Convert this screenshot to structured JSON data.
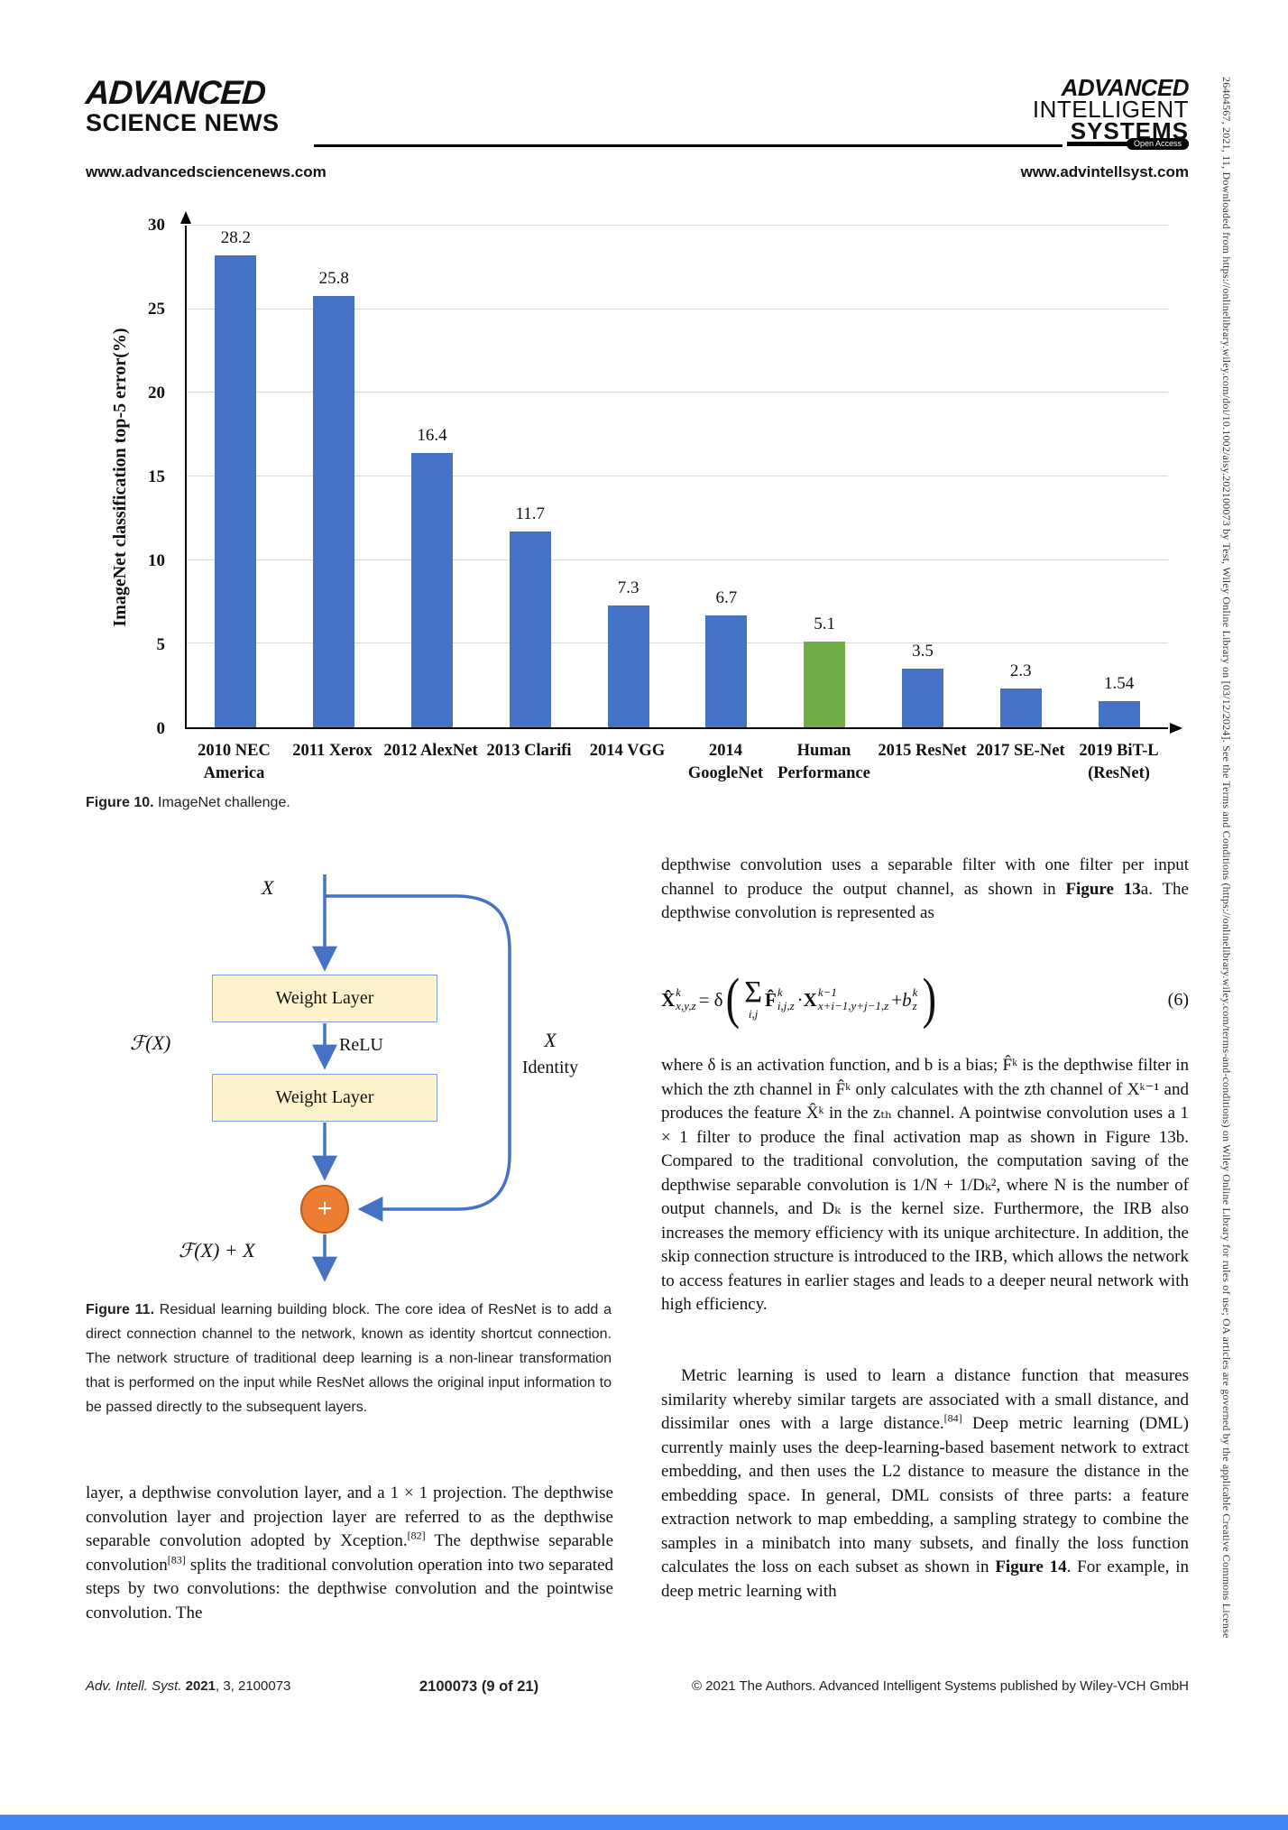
{
  "header": {
    "left_logo_line1": "ADVANCED",
    "left_logo_line2": "SCIENCE NEWS",
    "left_url": "www.advancedsciencenews.com",
    "right_logo_line1": "ADVANCED",
    "right_logo_line2": "INTELLIGENT",
    "right_logo_line3": "SYSTEMS",
    "open_access_label": "Open Access",
    "right_url": "www.advintellsyst.com"
  },
  "chart_data": {
    "type": "bar",
    "title": "",
    "xlabel": "",
    "ylabel": "ImageNet classification top-5 error(%)",
    "ylim": [
      0,
      30
    ],
    "yticks": [
      0,
      5,
      10,
      15,
      20,
      25,
      30
    ],
    "grid": true,
    "legend": "none",
    "categories": [
      "2010 NEC\nAmerica",
      "2011 Xerox",
      "2012 AlexNet",
      "2013 Clarifi",
      "2014 VGG",
      "2014\nGoogleNet",
      "Human\nPerformance",
      "2015 ResNet",
      "2017 SE-Net",
      "2019 BiT-L\n(ResNet)"
    ],
    "values": [
      28.2,
      25.8,
      16.4,
      11.7,
      7.3,
      6.7,
      5.1,
      3.5,
      2.3,
      1.54
    ],
    "value_labels": [
      "28.2",
      "25.8",
      "16.4",
      "11.7",
      "7.3",
      "6.7",
      "5.1",
      "3.5",
      "2.3",
      "1.54"
    ],
    "bar_color": "#4472c4",
    "highlight_index": 6,
    "highlight_color": "#70ad47"
  },
  "fig10_caption": {
    "label": "Figure 10.",
    "text": " ImageNet challenge."
  },
  "figure11": {
    "input_label": "X",
    "weight_layer1": "Weight Layer",
    "weight_layer2": "Weight Layer",
    "relu_label": "ReLU",
    "fx_label": "ℱ(X)",
    "identity_line1": "X",
    "identity_line2": "Identity",
    "plus_label": "+",
    "output_label": "ℱ(X) + X",
    "arrow_color": "#4472c4",
    "box_fill": "#fef2cc",
    "circle_fill": "#ed7d31"
  },
  "fig11_caption": {
    "label": "Figure 11.",
    "text": " Residual learning building block. The core idea of ResNet is to add a direct connection channel to the network, known as identity shortcut connection. The network structure of traditional deep learning is a non-linear transformation that is performed on the input while ResNet allows the original input information to be passed directly to the subsequent layers."
  },
  "left_column": {
    "seg1": "layer, a depthwise convolution layer, and a 1 × 1 projection. The depthwise convolution layer and projection layer are referred to as the depthwise separable convolution adopted by Xception.",
    "ref1": "[82]",
    "seg2": " The depthwise separable convolution",
    "ref2": "[83]",
    "seg3": " splits the traditional convolution operation into two separated steps by two convolutions: the depthwise convolution and the pointwise convolution. The"
  },
  "right_column": {
    "p1_seg1": "depthwise convolution uses a separable filter with one filter per input channel to produce the output channel, as shown in ",
    "p1_bold": "Figure 13",
    "p1_seg2": "a. The depthwise convolution is represented as",
    "equation": {
      "lhs_base": "X̂",
      "lhs_sup": "k",
      "lhs_sub": "x,y,z",
      "equals": "= δ",
      "paren_open": "(",
      "sum_sym": "Σ",
      "sum_sub": "i,j",
      "f_base": "F̂",
      "f_sup": "k",
      "f_sub": "i,j,z",
      "dot": "·",
      "x_base": "X",
      "x_sup": "k−1",
      "x_sub": "x+i−1,y+j−1,z",
      "plus": "+",
      "b_base": "b",
      "b_sup": "k",
      "b_sub": "z",
      "paren_close": ")",
      "number": "(6)"
    },
    "p2": "where δ is an activation function, and b is a bias; F̂ᵏ is the depthwise filter in which the zth channel in F̂ᵏ only calculates with the zth channel of Xᵏ⁻¹ and produces the feature X̂ᵏ in the zₜₕ channel. A pointwise convolution uses a 1 × 1 filter to produce the final activation map as shown in Figure 13b. Compared to the traditional convolution, the computation saving of the depthwise separable convolution is 1/N + 1/Dₖ², where N is the number of output channels, and Dₖ is the kernel size. Furthermore, the IRB also increases the memory efficiency with its unique architecture. In addition, the skip connection structure is introduced to the IRB, which allows the network to access features in earlier stages and leads to a deeper neural network with high efficiency.",
    "p3_seg1": "Metric learning is used to learn a distance function that measures similarity whereby similar targets are associated with a small distance, and dissimilar ones with a large distance.",
    "p3_ref1": "[84]",
    "p3_seg2": " Deep metric learning (DML) currently mainly uses the deep-learning-based basement network to extract embedding, and then uses the L2 distance to measure the distance in the embedding space. In general, DML consists of three parts: a feature extraction network to map embedding, a sampling strategy to combine the samples in a minibatch into many subsets, and finally the loss function calculates the loss on each subset as shown in ",
    "p3_bold": "Figure 14",
    "p3_seg3": ". For example, in deep metric learning with"
  },
  "footer": {
    "left_journal": "Adv. Intell. Syst. ",
    "left_year": "2021",
    "left_rest": ", 3, 2100073",
    "center": "2100073 (9 of 21)",
    "right": "© 2021 The Authors. Advanced Intelligent Systems published by Wiley-VCH GmbH"
  },
  "sidebar_note": "26404567, 2021, 11, Downloaded from https://onlinelibrary.wiley.com/doi/10.1002/aisy.202100073 by Test, Wiley Online Library on [03/12/2024]. See the Terms and Conditions (https://onlinelibrary.wiley.com/terms-and-conditions) on Wiley Online Library for rules of use; OA articles are governed by the applicable Creative Commons License",
  "colors": {
    "bottom_bar": "#4285f4",
    "gridline": "#d9d9d9"
  }
}
